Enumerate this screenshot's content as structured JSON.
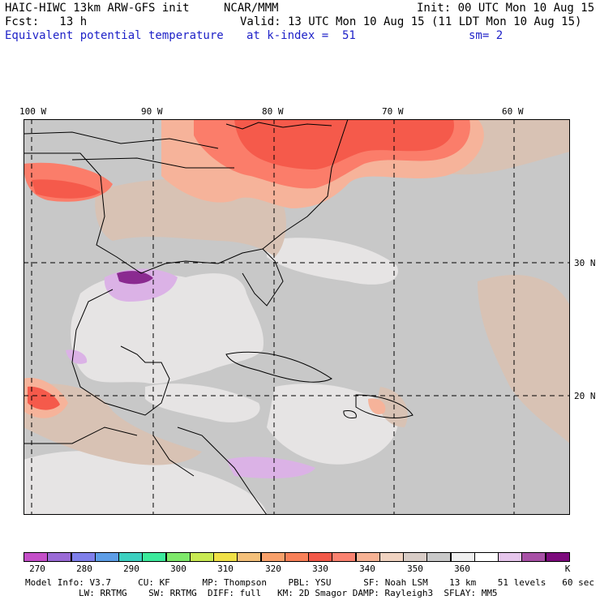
{
  "header": {
    "title_left": "HAIC-HIWC 13km ARW-GFS init",
    "title_mid": "NCAR/MMM",
    "init": "Init: 00 UTC Mon 10 Aug 15",
    "fcst": "Fcst:   13 h",
    "valid": "Valid: 13 UTC Mon 10 Aug 15 (11 LDT Mon 10 Aug 15)",
    "field": "Equivalent potential temperature",
    "level": "at k-index =  51",
    "smooth": "sm= 2"
  },
  "longitude_labels": [
    "100 W",
    "90 W",
    "80 W",
    "70 W",
    "60 W"
  ],
  "latitude_labels": [
    "30 N",
    "20 N"
  ],
  "colorbar": {
    "unit": "K",
    "labels": [
      "270",
      "280",
      "290",
      "300",
      "310",
      "320",
      "330",
      "340",
      "350",
      "360"
    ],
    "colors": [
      "#c44ec8",
      "#9a6ad6",
      "#7f7fea",
      "#5d9de6",
      "#3cd0c0",
      "#3cea9c",
      "#7ee86a",
      "#c8ea52",
      "#f0e046",
      "#f4c07a",
      "#f8a06a",
      "#f88058",
      "#f25848",
      "#fa8270",
      "#f7b294",
      "#f0d3c1",
      "#d8ccc6",
      "#c8c8c8",
      "#efefef",
      "#ffffff",
      "#e6c6ec",
      "#a850a6",
      "#7c0a7c"
    ]
  },
  "footer": {
    "line1": "Model Info: V3.7     CU: KF      MP: Thompson    PBL: YSU      SF: Noah LSM    13 km    51 levels   60 sec",
    "line2": "LW: RRTMG    SW: RRTMG  DIFF: full   KM: 2D Smagor DAMP: Rayleigh3  SFLAY: MM5"
  },
  "map_colors": {
    "grey_background": "#c8c8c8",
    "light_grey": "#e6e4e4",
    "tan": "#d8c2b4",
    "salmon": "#f6b39a",
    "orange_red": "#fb7d6a",
    "red": "#f55a4b",
    "purple_light": "#dbb2e6",
    "purple": "#b25ac0",
    "purple_dark": "#8a2a90"
  }
}
